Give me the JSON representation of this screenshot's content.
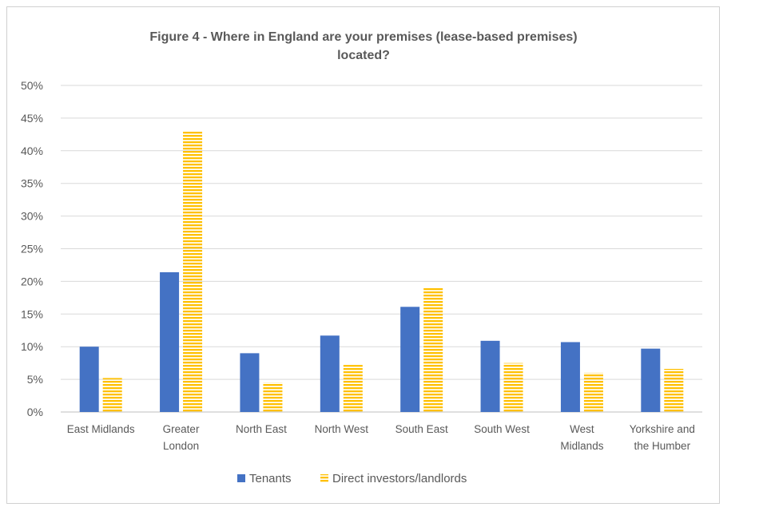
{
  "chart_data": {
    "type": "bar",
    "title": "Figure 4 - Where in England are your premises (lease-based premises) located?",
    "title_lines": [
      "Figure 4 - Where in England are your premises (lease-based premises)",
      "located?"
    ],
    "categories": [
      "East Midlands",
      "Greater London",
      "North East",
      "North West",
      "South East",
      "South West",
      "West Midlands",
      "Yorkshire and the Humber"
    ],
    "category_lines": [
      [
        "East Midlands"
      ],
      [
        "Greater",
        "London"
      ],
      [
        "North East"
      ],
      [
        "North West"
      ],
      [
        "South East"
      ],
      [
        "South West"
      ],
      [
        "West",
        "Midlands"
      ],
      [
        "Yorkshire and",
        "the Humber"
      ]
    ],
    "series": [
      {
        "name": "Tenants",
        "values": [
          10.0,
          21.4,
          9.0,
          11.7,
          16.1,
          10.9,
          10.7,
          9.7
        ],
        "color": "#4472C4",
        "pattern": "solid"
      },
      {
        "name": "Direct investors/landlords",
        "values": [
          5.2,
          43.1,
          4.5,
          7.2,
          19.1,
          7.5,
          6.0,
          6.6
        ],
        "color": "#FFC000",
        "pattern": "horizontal-stripes"
      }
    ],
    "ylim": [
      0,
      50
    ],
    "yticks": [
      0,
      5,
      10,
      15,
      20,
      25,
      30,
      35,
      40,
      45,
      50
    ],
    "ytick_labels": [
      "0%",
      "5%",
      "10%",
      "15%",
      "20%",
      "25%",
      "30%",
      "35%",
      "40%",
      "45%",
      "50%"
    ],
    "xlabel": "",
    "ylabel": "",
    "grid": true,
    "legend_position": "bottom"
  }
}
